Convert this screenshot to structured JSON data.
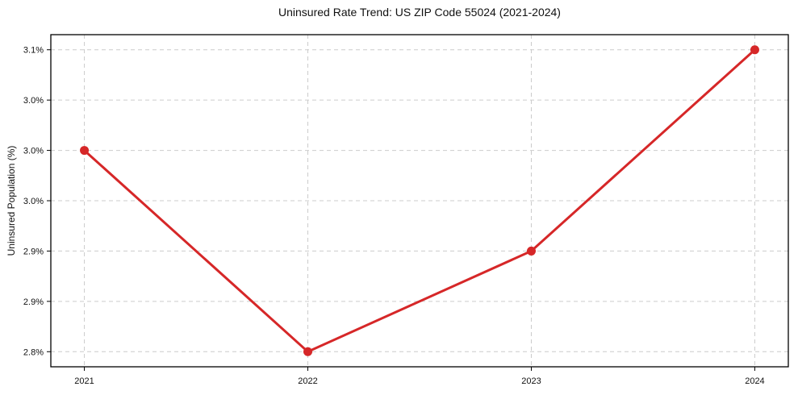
{
  "chart_data": {
    "type": "line",
    "title": "Uninsured Rate Trend: US ZIP Code 55024 (2021-2024)",
    "xlabel": "",
    "ylabel": "Uninsured Population (%)",
    "x": [
      2021,
      2022,
      2023,
      2024
    ],
    "values": [
      3.0,
      2.8,
      2.9,
      3.1
    ],
    "x_tick_labels": [
      "2021",
      "2022",
      "2023",
      "2024"
    ],
    "y_ticks": [
      {
        "value": 2.8,
        "label": "2.8%"
      },
      {
        "value": 2.85,
        "label": "2.9%"
      },
      {
        "value": 2.9,
        "label": "2.9%"
      },
      {
        "value": 2.95,
        "label": "3.0%"
      },
      {
        "value": 3.0,
        "label": "3.0%"
      },
      {
        "value": 3.05,
        "label": "3.0%"
      },
      {
        "value": 3.1,
        "label": "3.1%"
      }
    ],
    "xlim": [
      2020.85,
      2024.15
    ],
    "ylim": [
      2.785,
      3.115
    ],
    "grid": true,
    "grid_style": "dashed",
    "legend": false,
    "line_color": "#d62728",
    "marker": "circle",
    "marker_color": "#d62728",
    "grid_color": "#cccccc",
    "spine_color": "#000000",
    "background": "#ffffff"
  }
}
